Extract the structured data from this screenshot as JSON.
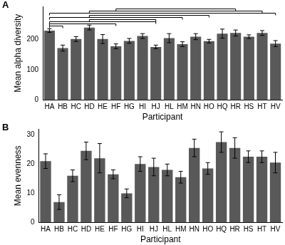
{
  "chart_data": [
    {
      "type": "bar",
      "title": "A",
      "x_label": "Participant",
      "y_label": "Mean alpha diversity",
      "categories": [
        "HA",
        "HB",
        "HC",
        "HD",
        "HE",
        "HF",
        "HG",
        "HI",
        "HJ",
        "HL",
        "HM",
        "HN",
        "HO",
        "HQ",
        "HR",
        "HS",
        "HT",
        "HV"
      ],
      "values": [
        230,
        172,
        202,
        240,
        202,
        178,
        196,
        212,
        176,
        205,
        185,
        210,
        195,
        220,
        222,
        210,
        222,
        187
      ],
      "errors": [
        6,
        10,
        8,
        8,
        15,
        8,
        8,
        8,
        6,
        15,
        8,
        10,
        6,
        15,
        10,
        6,
        8,
        10
      ],
      "comparisons": [
        [
          "HF",
          "HR"
        ],
        [
          "HD",
          "HT"
        ],
        [
          "HA",
          "HV"
        ],
        [
          "HD",
          "HO"
        ],
        [
          "HA",
          "HM"
        ],
        [
          "HD",
          "HJ"
        ],
        [
          "HA",
          "HJ"
        ],
        [
          "HA",
          "HF"
        ],
        [
          "HA",
          "HB"
        ]
      ],
      "color": "#595959",
      "ylim": [
        0,
        310
      ],
      "yticks": [
        0,
        100,
        200
      ],
      "grid": false
    },
    {
      "type": "bar",
      "title": "B",
      "x_label": "Participant",
      "y_label": "Mean evenness",
      "categories": [
        "HA",
        "HB",
        "HC",
        "HD",
        "HE",
        "HF",
        "HG",
        "HI",
        "HJ",
        "HL",
        "HM",
        "HN",
        "HO",
        "HQ",
        "HR",
        "HS",
        "HT",
        "HV"
      ],
      "values": [
        21,
        7,
        16,
        24.5,
        22,
        16.5,
        10,
        20,
        19,
        18,
        15.5,
        25.5,
        18.5,
        27.5,
        25.5,
        22.5,
        22.5,
        20.5
      ],
      "errors": [
        2.5,
        2.5,
        2,
        3,
        5,
        1.5,
        1.5,
        2.5,
        3,
        2,
        2,
        3,
        2,
        3.5,
        3.5,
        2,
        2,
        3.5
      ],
      "color": "#595959",
      "ylim": [
        0,
        32
      ],
      "yticks": [
        0,
        10,
        20,
        30
      ],
      "grid": false
    }
  ]
}
